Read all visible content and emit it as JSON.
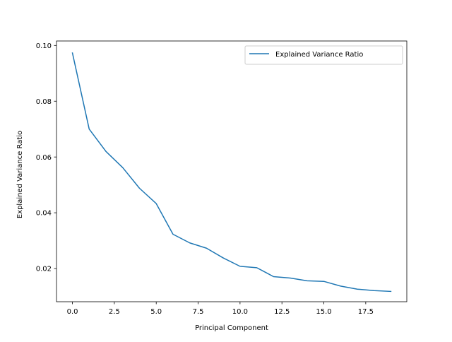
{
  "chart_data": {
    "type": "line",
    "title": "",
    "xlabel": "Principal Component",
    "ylabel": "Explained Variance Ratio",
    "xlim": [
      -0.95,
      19.95
    ],
    "ylim": [
      0.0081,
      0.1016
    ],
    "xticks": [
      0.0,
      2.5,
      5.0,
      7.5,
      10.0,
      12.5,
      15.0,
      17.5
    ],
    "xtick_labels": [
      "0.0",
      "2.5",
      "5.0",
      "7.5",
      "10.0",
      "12.5",
      "15.0",
      "17.5"
    ],
    "yticks": [
      0.02,
      0.04,
      0.06,
      0.08,
      0.1
    ],
    "ytick_labels": [
      "0.02",
      "0.04",
      "0.06",
      "0.08",
      "0.10"
    ],
    "grid": false,
    "legend": {
      "position": "top-right"
    },
    "series": [
      {
        "name": "Explained Variance Ratio",
        "color": "#1f77b4",
        "x": [
          0,
          1,
          2,
          3,
          4,
          5,
          6,
          7,
          8,
          9,
          10,
          11,
          12,
          13,
          14,
          15,
          16,
          17,
          18,
          19
        ],
        "values": [
          0.0973,
          0.07,
          0.062,
          0.0562,
          0.0488,
          0.0433,
          0.0323,
          0.0292,
          0.0273,
          0.0238,
          0.0208,
          0.0203,
          0.0171,
          0.0166,
          0.0156,
          0.0154,
          0.0137,
          0.0126,
          0.0121,
          0.0118
        ]
      }
    ]
  }
}
